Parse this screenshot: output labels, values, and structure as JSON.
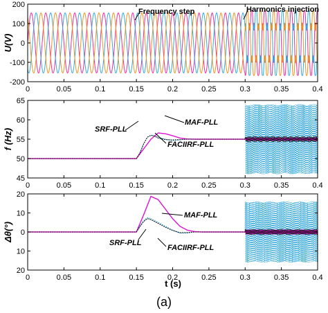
{
  "caption": "(a)",
  "xlabel": "t (s)",
  "colors": {
    "phase_a": "#ee2c9a",
    "phase_b": "#33aadd",
    "phase_c": "#ee9420",
    "srf": "#1f9ed8",
    "maf": "#e010d0",
    "faciirf": "#111111"
  },
  "chart_data": [
    {
      "type": "line",
      "ylabel": "U(V)",
      "xlim": [
        0,
        0.4
      ],
      "ylim": [
        -200,
        200
      ],
      "xticks": [
        "0",
        "0.05",
        "0.1",
        "0.15",
        "0.2",
        "0.25",
        "0.3",
        "0.35",
        "0.4"
      ],
      "yticks": [
        "-200",
        "-100",
        "0",
        "100",
        "200"
      ],
      "annotations": [
        "Frequency step",
        "Harmonics injection"
      ],
      "series": [
        {
          "amplitude": 155,
          "phase_deg": 0,
          "frequency_hz": [
            50,
            55
          ],
          "step_time": 0.15,
          "harmonics_from": 0.3
        },
        {
          "amplitude": 155,
          "phase_deg": -120,
          "frequency_hz": [
            50,
            55
          ],
          "step_time": 0.15,
          "harmonics_from": 0.3
        },
        {
          "amplitude": 155,
          "phase_deg": 120,
          "frequency_hz": [
            50,
            55
          ],
          "step_time": 0.15,
          "harmonics_from": 0.3
        }
      ]
    },
    {
      "type": "line",
      "ylabel": "f (Hz)",
      "xlim": [
        0,
        0.4
      ],
      "ylim": [
        45,
        65
      ],
      "xticks": [
        "0",
        "0.05",
        "0.1",
        "0.15",
        "0.2",
        "0.25",
        "0.3",
        "0.35",
        "0.4"
      ],
      "yticks": [
        "45",
        "50",
        "55",
        "60",
        "65"
      ],
      "series": [
        {
          "name": "SRF-PLL",
          "points": [
            [
              0,
              50
            ],
            [
              0.15,
              50
            ],
            [
              0.155,
              51.5
            ],
            [
              0.16,
              53.8
            ],
            [
              0.165,
              55.5
            ],
            [
              0.17,
              56
            ],
            [
              0.175,
              55.9
            ],
            [
              0.18,
              55.5
            ],
            [
              0.19,
              55
            ],
            [
              0.2,
              54.6
            ],
            [
              0.21,
              54.8
            ],
            [
              0.22,
              55.1
            ],
            [
              0.23,
              55
            ],
            [
              0.3,
              55
            ]
          ],
          "osc_from": 0.3,
          "osc_amplitude": 9,
          "osc_frequency_hz": 550
        },
        {
          "name": "MAF-PLL",
          "points": [
            [
              0,
              50
            ],
            [
              0.15,
              50
            ],
            [
              0.16,
              52.5
            ],
            [
              0.17,
              55
            ],
            [
              0.18,
              56.6
            ],
            [
              0.19,
              56.4
            ],
            [
              0.2,
              55.9
            ],
            [
              0.21,
              55.3
            ],
            [
              0.22,
              55.05
            ],
            [
              0.23,
              55
            ],
            [
              0.4,
              55
            ]
          ],
          "osc_from": 0.3,
          "osc_amplitude": 0.3,
          "osc_frequency_hz": 550
        },
        {
          "name": "FACIIRF-PLL",
          "points": [
            [
              0,
              50
            ],
            [
              0.15,
              50
            ],
            [
              0.155,
              51.5
            ],
            [
              0.16,
              53.8
            ],
            [
              0.165,
              55.5
            ],
            [
              0.17,
              56
            ],
            [
              0.175,
              55.8
            ],
            [
              0.18,
              55.3
            ],
            [
              0.19,
              54.9
            ],
            [
              0.2,
              54.8
            ],
            [
              0.21,
              54.9
            ],
            [
              0.22,
              55
            ],
            [
              0.4,
              55
            ]
          ],
          "osc_from": 0.3,
          "osc_amplitude": 0.6,
          "osc_frequency_hz": 550
        }
      ]
    },
    {
      "type": "line",
      "ylabel": "Δθ(°)",
      "xlim": [
        0,
        0.4
      ],
      "ylim": [
        -20,
        20
      ],
      "xticks": [
        "0",
        "0.05",
        "0.1",
        "0.15",
        "0.2",
        "0.25",
        "0.3",
        "0.35",
        "0.4"
      ],
      "yticks": [
        "20",
        "10",
        "0",
        "10",
        "20"
      ],
      "series": [
        {
          "name": "SRF-PLL",
          "points": [
            [
              0,
              0
            ],
            [
              0.15,
              0
            ],
            [
              0.155,
              3
            ],
            [
              0.16,
              6
            ],
            [
              0.165,
              7.5
            ],
            [
              0.17,
              7
            ],
            [
              0.18,
              5
            ],
            [
              0.19,
              3
            ],
            [
              0.2,
              1
            ],
            [
              0.21,
              -0.5
            ],
            [
              0.22,
              -0.6
            ],
            [
              0.23,
              0
            ],
            [
              0.3,
              0
            ]
          ],
          "osc_from": 0.3,
          "osc_amplitude": 16,
          "osc_frequency_hz": 550
        },
        {
          "name": "MAF-PLL",
          "points": [
            [
              0,
              0
            ],
            [
              0.15,
              0
            ],
            [
              0.16,
              9
            ],
            [
              0.17,
              18.7
            ],
            [
              0.18,
              17
            ],
            [
              0.19,
              12
            ],
            [
              0.2,
              7
            ],
            [
              0.21,
              3
            ],
            [
              0.22,
              1
            ],
            [
              0.23,
              0.2
            ],
            [
              0.24,
              0
            ],
            [
              0.4,
              0
            ]
          ],
          "osc_from": 0.3,
          "osc_amplitude": 1,
          "osc_frequency_hz": 550
        },
        {
          "name": "FACIIRF-PLL",
          "points": [
            [
              0,
              0
            ],
            [
              0.15,
              0
            ],
            [
              0.155,
              3
            ],
            [
              0.16,
              5.5
            ],
            [
              0.165,
              7
            ],
            [
              0.17,
              6.5
            ],
            [
              0.18,
              4.5
            ],
            [
              0.19,
              2.5
            ],
            [
              0.2,
              0.8
            ],
            [
              0.21,
              -0.4
            ],
            [
              0.22,
              -0.3
            ],
            [
              0.23,
              0
            ],
            [
              0.4,
              0
            ]
          ],
          "osc_from": 0.3,
          "osc_amplitude": 1.2,
          "osc_frequency_hz": 550
        }
      ]
    }
  ]
}
